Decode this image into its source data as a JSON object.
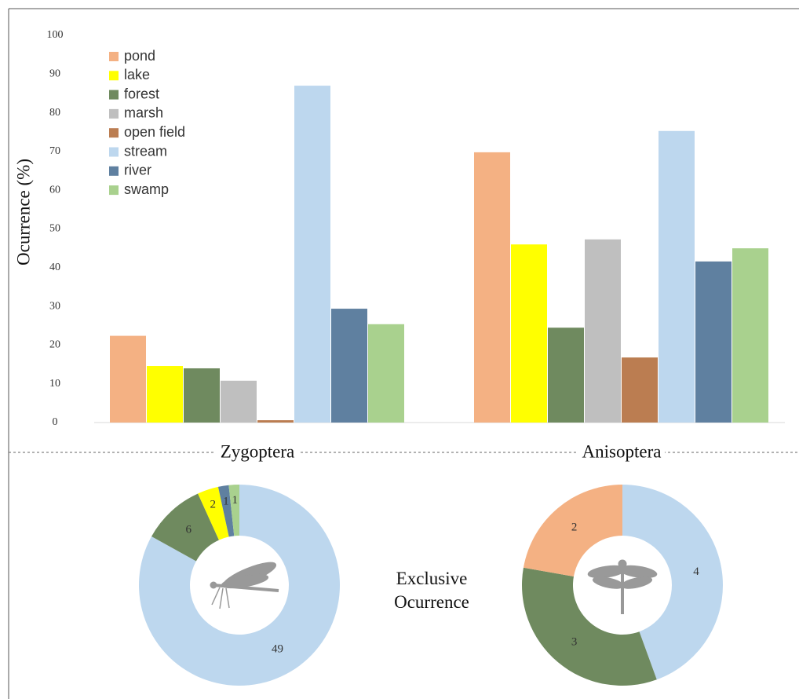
{
  "center_label": "Exclusive Ocurrence",
  "chart_data": [
    {
      "type": "bar",
      "y_label": "Ocurrence (%)",
      "categories": [
        "Zygoptera",
        "Anisoptera"
      ],
      "ylim": [
        0,
        100
      ],
      "yticks": [
        0,
        10,
        20,
        30,
        40,
        50,
        60,
        70,
        80,
        90,
        100
      ],
      "series": [
        {
          "name": "pond",
          "color": "#f4b183",
          "values": [
            22.4,
            69.8
          ]
        },
        {
          "name": "lake",
          "color": "#ffff00",
          "values": [
            14.6,
            46.0
          ]
        },
        {
          "name": "forest",
          "color": "#6f8a5f",
          "values": [
            14.0,
            24.5
          ]
        },
        {
          "name": "marsh",
          "color": "#bfbfbf",
          "values": [
            10.8,
            47.3
          ]
        },
        {
          "name": "open field",
          "color": "#bb7d51",
          "values": [
            0.6,
            16.8
          ]
        },
        {
          "name": "stream",
          "color": "#bdd7ee",
          "values": [
            87.0,
            75.3
          ]
        },
        {
          "name": "river",
          "color": "#5f80a0",
          "values": [
            29.4,
            41.6
          ]
        },
        {
          "name": "swamp",
          "color": "#a9d18e",
          "values": [
            25.4,
            45.0
          ]
        }
      ]
    },
    {
      "type": "donut",
      "values": [
        49,
        6,
        2,
        1,
        1
      ],
      "colors": [
        "#bdd7ee",
        "#6f8a5f",
        "#ffff00",
        "#5f80a0",
        "#a9d18e"
      ]
    },
    {
      "type": "donut",
      "values": [
        4,
        3,
        2
      ],
      "colors": [
        "#bdd7ee",
        "#6f8a5f",
        "#f4b183"
      ]
    }
  ]
}
